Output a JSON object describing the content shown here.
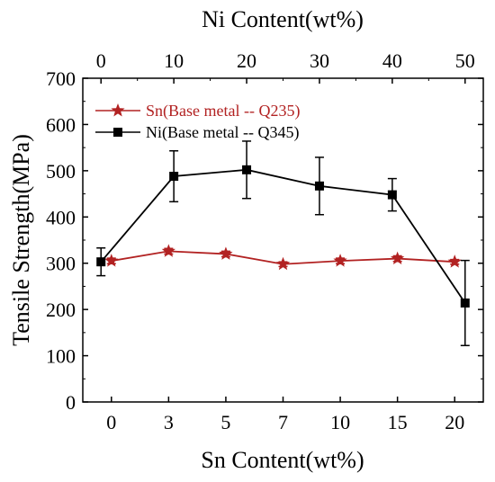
{
  "chart_data": {
    "type": "line",
    "title": "",
    "xlabel": "Sn Content(wt%)",
    "ylabel": "Tensile Strength(MPa)",
    "x2label": "Ni Content(wt%)",
    "ylim": [
      0,
      700
    ],
    "yticks": [
      0,
      100,
      200,
      300,
      400,
      500,
      600,
      700
    ],
    "xlim_bottom": [
      -0.5,
      6.5
    ],
    "bottom_ticks": [
      "0",
      "3",
      "5",
      "7",
      "10",
      "15",
      "20"
    ],
    "xlim_top": [
      -2.5,
      52.5
    ],
    "top_ticks": [
      0,
      10,
      20,
      30,
      40,
      50
    ],
    "grid": false,
    "legend_position": "top-left",
    "series": [
      {
        "name": "Sn(Base metal -- Q235)",
        "axis": "bottom",
        "marker": "star",
        "color": "#b22222",
        "x": [
          0,
          1,
          2,
          3,
          4,
          5,
          6
        ],
        "y": [
          305,
          326,
          320,
          298,
          305,
          310,
          303
        ],
        "err": [
          6,
          6,
          6,
          5,
          6,
          6,
          5
        ]
      },
      {
        "name": "Ni(Base metal -- Q345)",
        "axis": "top",
        "marker": "square",
        "color": "#000000",
        "x": [
          0,
          10,
          20,
          30,
          40,
          50
        ],
        "y": [
          303,
          488,
          502,
          467,
          448,
          214
        ],
        "err": [
          30,
          55,
          62,
          62,
          35,
          92
        ]
      }
    ]
  }
}
